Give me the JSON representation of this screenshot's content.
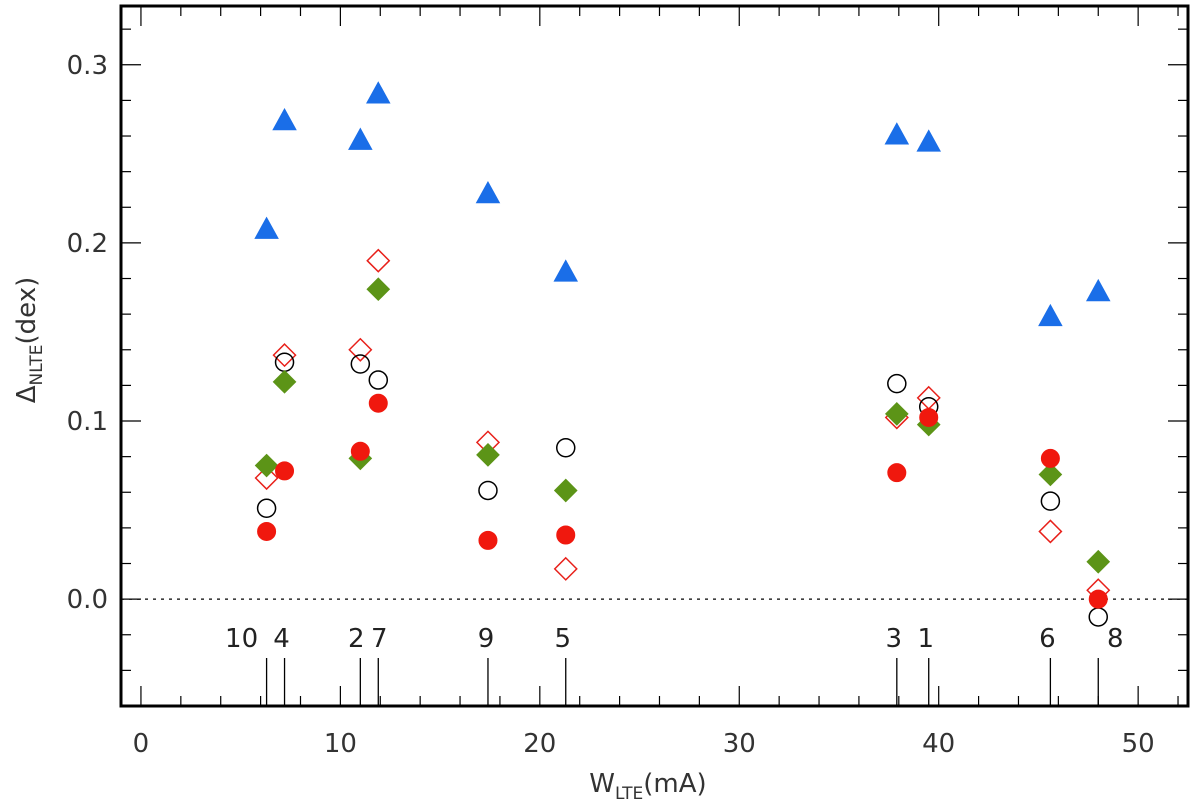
{
  "chart_data": {
    "type": "scatter",
    "xlabel": {
      "main": "W",
      "sub": "LTE",
      "unit": "(mA)"
    },
    "ylabel": {
      "main": "Δ",
      "sub": "NLTE",
      "unit": "(dex)"
    },
    "xlim": [
      -1,
      52.5
    ],
    "ylim": [
      -0.06,
      0.333
    ],
    "x_ticks": [
      0,
      10,
      20,
      30,
      40,
      50
    ],
    "y_ticks": [
      0.0,
      0.1,
      0.2,
      0.3
    ],
    "y_tick_labels": [
      "0.0",
      "0.1",
      "0.2",
      "0.3"
    ],
    "reference_line_y": 0.0,
    "line_markers": [
      {
        "label": "10",
        "x": 6.3
      },
      {
        "label": "4",
        "x": 7.2
      },
      {
        "label": "2",
        "x": 11.0
      },
      {
        "label": "7",
        "x": 11.9
      },
      {
        "label": "9",
        "x": 17.4
      },
      {
        "label": "5",
        "x": 21.3
      },
      {
        "label": "3",
        "x": 37.9
      },
      {
        "label": "1",
        "x": 39.5
      },
      {
        "label": "6",
        "x": 45.6
      },
      {
        "label": "8",
        "x": 48.0
      }
    ],
    "series": [
      {
        "name": "blue-triangle",
        "marker": "triangle",
        "color": "#1a6ee8",
        "filled": true,
        "x": [
          6.3,
          7.2,
          11.0,
          11.9,
          17.4,
          21.3,
          37.9,
          39.5,
          45.6,
          48.0
        ],
        "y": [
          0.208,
          0.269,
          0.258,
          0.284,
          0.228,
          0.184,
          0.261,
          0.257,
          0.159,
          0.173
        ]
      },
      {
        "name": "red-open-diamond",
        "marker": "diamond",
        "color": "#e8201a",
        "filled": false,
        "x": [
          6.3,
          7.2,
          11.0,
          11.9,
          17.4,
          21.3,
          37.9,
          39.5,
          45.6,
          48.0
        ],
        "y": [
          0.068,
          0.137,
          0.14,
          0.19,
          0.088,
          0.017,
          0.102,
          0.113,
          0.038,
          0.005
        ]
      },
      {
        "name": "black-open-circle",
        "marker": "circle",
        "color": "#000000",
        "filled": false,
        "x": [
          6.3,
          7.2,
          11.0,
          11.9,
          17.4,
          21.3,
          37.9,
          39.5,
          45.6,
          48.0
        ],
        "y": [
          0.051,
          0.133,
          0.132,
          0.123,
          0.061,
          0.085,
          0.121,
          0.108,
          0.055,
          -0.01
        ]
      },
      {
        "name": "green-filled-diamond",
        "marker": "diamond",
        "color": "#5c9417",
        "filled": true,
        "x": [
          6.3,
          7.2,
          11.0,
          11.9,
          17.4,
          21.3,
          37.9,
          39.5,
          45.6,
          48.0
        ],
        "y": [
          0.075,
          0.122,
          0.079,
          0.174,
          0.081,
          0.061,
          0.104,
          0.098,
          0.07,
          0.021
        ]
      },
      {
        "name": "red-filled-circle",
        "marker": "circle",
        "color": "#f0180e",
        "filled": true,
        "x": [
          6.3,
          7.2,
          11.0,
          11.9,
          17.4,
          21.3,
          37.9,
          39.5,
          45.6,
          48.0
        ],
        "y": [
          0.038,
          0.072,
          0.083,
          0.11,
          0.033,
          0.036,
          0.071,
          0.102,
          0.079,
          0.0
        ]
      }
    ]
  }
}
